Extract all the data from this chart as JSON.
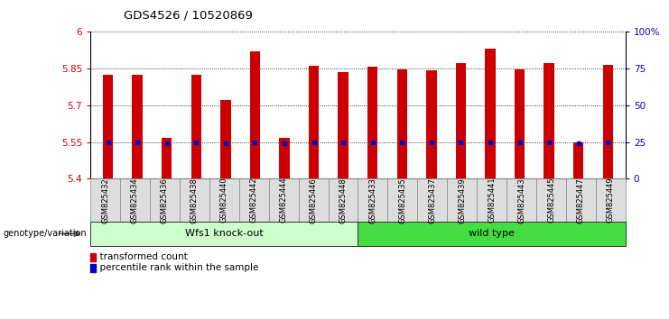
{
  "title": "GDS4526 / 10520869",
  "categories": [
    "GSM825432",
    "GSM825434",
    "GSM825436",
    "GSM825438",
    "GSM825440",
    "GSM825442",
    "GSM825444",
    "GSM825446",
    "GSM825448",
    "GSM825433",
    "GSM825435",
    "GSM825437",
    "GSM825439",
    "GSM825441",
    "GSM825443",
    "GSM825445",
    "GSM825447",
    "GSM825449"
  ],
  "bar_values": [
    5.826,
    5.826,
    5.565,
    5.826,
    5.722,
    5.92,
    5.565,
    5.862,
    5.836,
    5.858,
    5.848,
    5.842,
    5.872,
    5.93,
    5.848,
    5.872,
    5.548,
    5.865
  ],
  "percentile_values": [
    5.548,
    5.547,
    5.543,
    5.548,
    5.545,
    5.548,
    5.546,
    5.548,
    5.548,
    5.548,
    5.548,
    5.547,
    5.548,
    5.548,
    5.548,
    5.548,
    5.545,
    5.548
  ],
  "group1_label": "Wfs1 knock-out",
  "group2_label": "wild type",
  "group1_count": 9,
  "group2_count": 9,
  "group1_color": "#ccffcc",
  "group2_color": "#44dd44",
  "bar_color": "#cc0000",
  "percentile_color": "#0000cc",
  "ylim_left": [
    5.4,
    6.0
  ],
  "yticks_left": [
    5.4,
    5.55,
    5.7,
    5.85,
    6.0
  ],
  "yticks_right": [
    0,
    25,
    50,
    75,
    100
  ],
  "ytick_labels_left": [
    "5.4",
    "5.55",
    "5.7",
    "5.85",
    "6"
  ],
  "ytick_labels_right": [
    "0",
    "25",
    "50",
    "75",
    "100%"
  ],
  "legend_transformed": "transformed count",
  "legend_percentile": "percentile rank within the sample",
  "genotype_label": "genotype/variation",
  "background_color": "#ffffff",
  "plot_bg_color": "#ffffff",
  "bar_bottom": 5.4,
  "bar_width": 0.35
}
